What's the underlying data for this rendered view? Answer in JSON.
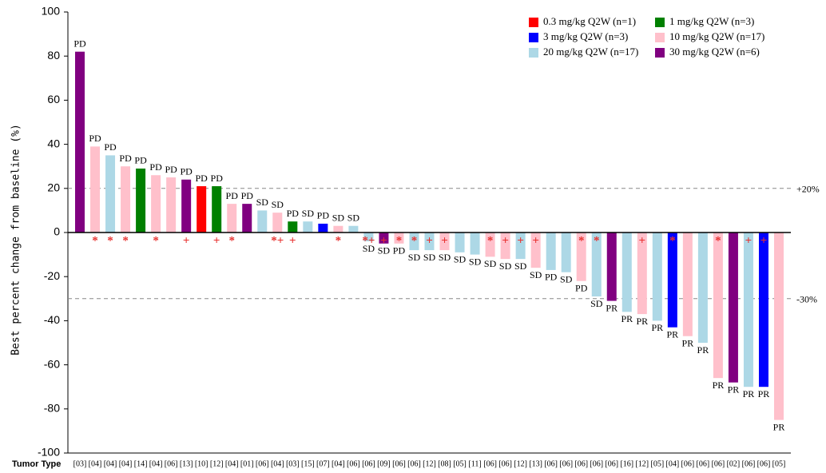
{
  "chart_data": {
    "type": "bar",
    "ylabel": "Best percent change from baseline (%)",
    "xlabel": "Tumor Type",
    "categories": [
      "[03]",
      "[04]",
      "[04]",
      "[04]",
      "[14]",
      "[04]",
      "[06]",
      "[13]",
      "[10]",
      "[12]",
      "[04]",
      "[01]",
      "[06]",
      "[04]",
      "[03]",
      "[15]",
      "[07]",
      "[04]",
      "[06]",
      "[06]",
      "[09]",
      "[06]",
      "[06]",
      "[12]",
      "[08]",
      "[05]",
      "[11]",
      "[06]",
      "[06]",
      "[12]",
      "[13]",
      "[06]",
      "[06]",
      "[06]",
      "[06]",
      "[06]",
      "[16]",
      "[12]",
      "[05]",
      "[04]",
      "[06]",
      "[06]",
      "[06]",
      "[02]",
      "[06]",
      "[06]",
      "[05]"
    ],
    "values": [
      82,
      39,
      35,
      30,
      29,
      26,
      25,
      24,
      21,
      21,
      13,
      13,
      10,
      9,
      5,
      5,
      4,
      3,
      3,
      -4,
      -5,
      -5,
      -8,
      -8,
      -8,
      -9,
      -10,
      -11,
      -12,
      -12,
      -16,
      -17,
      -18,
      -22,
      -29,
      -31,
      -36,
      -37,
      -40,
      -43,
      -47,
      -50,
      -66,
      -68,
      -70,
      -70,
      -85
    ],
    "colors": [
      "#800080",
      "#ffc0cb",
      "#add8e6",
      "#ffc0cb",
      "#008000",
      "#ffc0cb",
      "#ffc0cb",
      "#800080",
      "#ff0000",
      "#008000",
      "#ffc0cb",
      "#800080",
      "#add8e6",
      "#ffc0cb",
      "#008000",
      "#add8e6",
      "#0000ff",
      "#ffc0cb",
      "#add8e6",
      "#add8e6",
      "#800080",
      "#ffc0cb",
      "#add8e6",
      "#add8e6",
      "#ffc0cb",
      "#add8e6",
      "#add8e6",
      "#ffc0cb",
      "#ffc0cb",
      "#add8e6",
      "#ffc0cb",
      "#add8e6",
      "#add8e6",
      "#ffc0cb",
      "#add8e6",
      "#800080",
      "#add8e6",
      "#ffc0cb",
      "#add8e6",
      "#0000ff",
      "#ffc0cb",
      "#add8e6",
      "#ffc0cb",
      "#800080",
      "#add8e6",
      "#0000ff",
      "#ffc0cb"
    ],
    "responses": [
      "PD",
      "PD",
      "PD",
      "PD",
      "PD",
      "PD",
      "PD",
      "PD",
      "PD",
      "PD",
      "PD",
      "PD",
      "SD",
      "SD",
      "PD",
      "SD",
      "PD",
      "SD",
      "SD",
      "SD",
      "SD",
      "PD",
      "SD",
      "SD",
      "SD",
      "SD",
      "SD",
      "SD",
      "SD",
      "SD",
      "SD",
      "PD",
      "SD",
      "PD",
      "SD",
      "PR",
      "PR",
      "PR",
      "PR",
      "PR",
      "PR",
      "PR",
      "PR",
      "PR",
      "PR",
      "PR",
      "PR"
    ],
    "markers": [
      null,
      "*",
      "*",
      "*",
      null,
      "*",
      null,
      "+",
      null,
      "+",
      "*",
      null,
      null,
      "*+",
      "+",
      null,
      null,
      "*",
      null,
      "*+",
      "+",
      "*",
      "*",
      "+",
      "+",
      null,
      null,
      "*",
      "+",
      "+",
      "+",
      null,
      null,
      "*",
      "*",
      null,
      null,
      "+",
      null,
      "*",
      null,
      null,
      "*",
      null,
      "+",
      "+",
      null
    ],
    "series": [
      {
        "name": "0.3 mg/kg Q2W (n=1)",
        "color": "#ff0000"
      },
      {
        "name": "1 mg/kg Q2W (n=3)",
        "color": "#008000"
      },
      {
        "name": "3 mg/kg Q2W (n=3)",
        "color": "#0000ff"
      },
      {
        "name": "10 mg/kg Q2W (n=17)",
        "color": "#ffc0cb"
      },
      {
        "name": "20 mg/kg Q2W (n=17)",
        "color": "#add8e6"
      },
      {
        "name": "30 mg/kg Q2W (n=6)",
        "color": "#800080"
      }
    ],
    "reference_lines": [
      {
        "value": 20,
        "label": "+20%"
      },
      {
        "value": -30,
        "label": "-30%"
      }
    ],
    "ylim": [
      -100,
      100
    ],
    "yticks": [
      -100,
      -80,
      -60,
      -40,
      -20,
      0,
      20,
      40,
      60,
      80,
      100
    ],
    "legend": "upper right"
  }
}
